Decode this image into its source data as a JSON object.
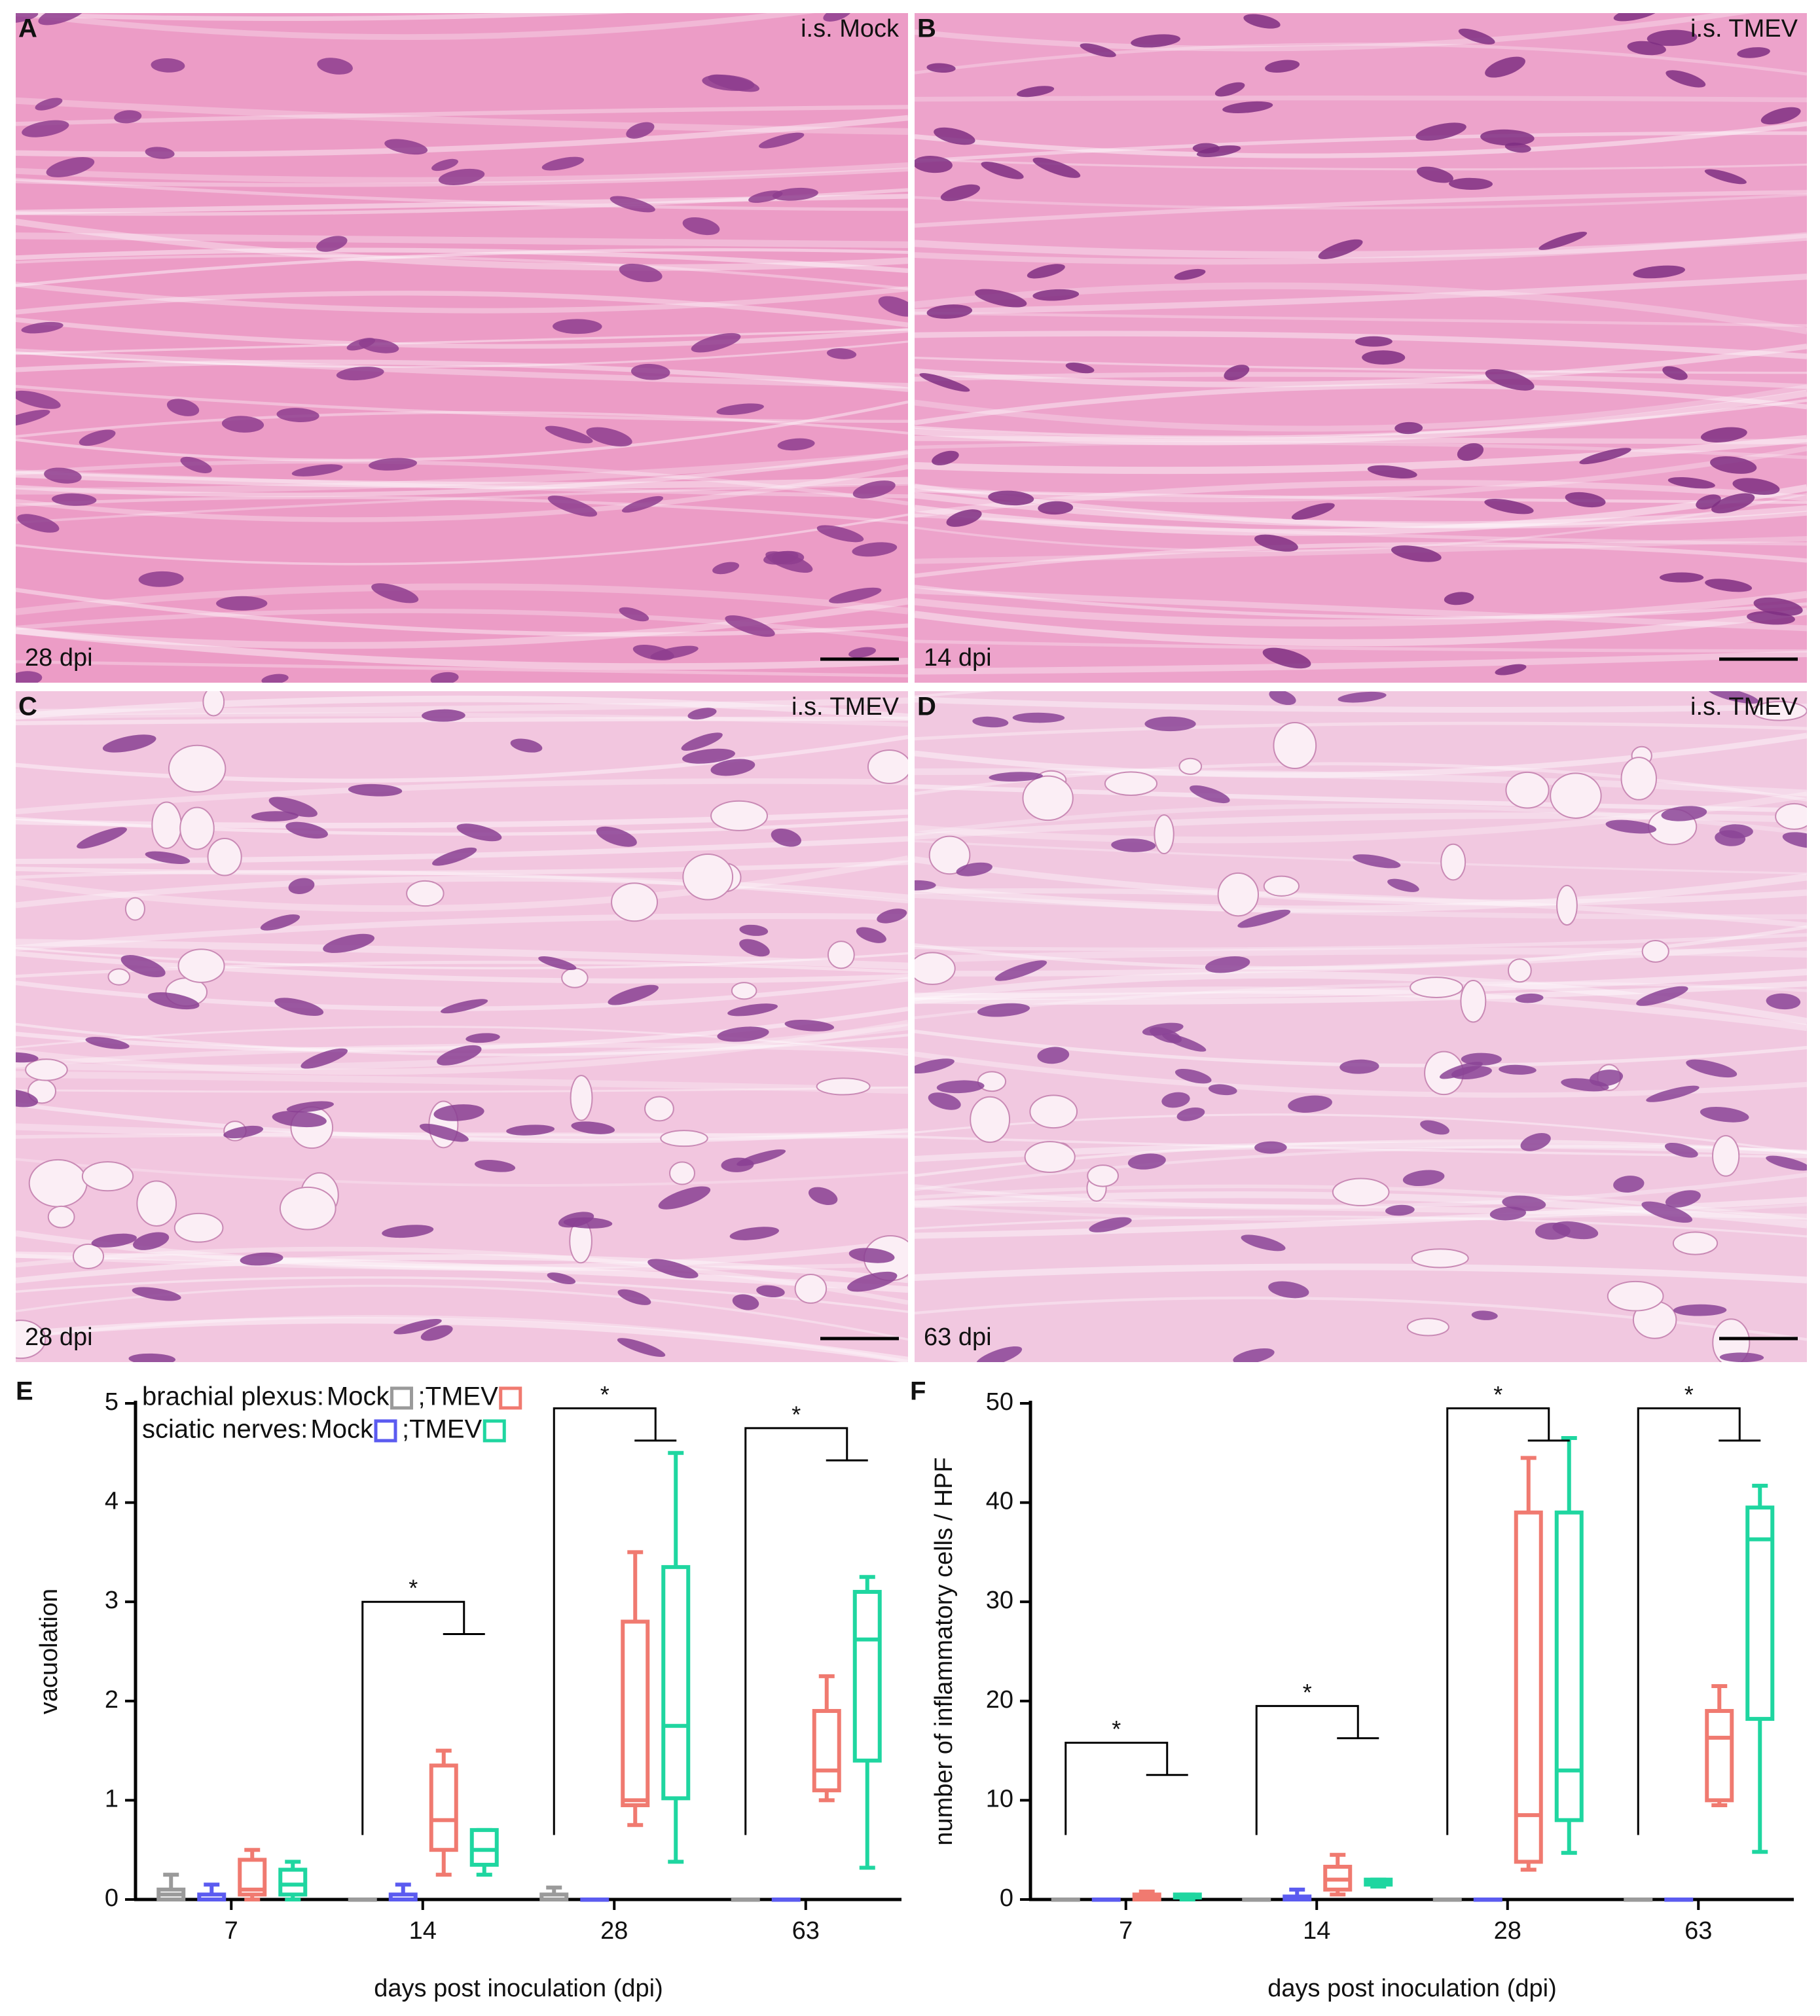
{
  "panels": [
    {
      "letter": "A",
      "label": "i.s. Mock",
      "time": "28 dpi"
    },
    {
      "letter": "B",
      "label": "i.s. TMEV",
      "time": "14 dpi"
    },
    {
      "letter": "C",
      "label": "i.s. TMEV",
      "time": "28 dpi"
    },
    {
      "letter": "D",
      "label": "i.s. TMEV",
      "time": "63 dpi"
    }
  ],
  "chart_data": [
    {
      "type": "box",
      "letter": "E",
      "ylabel": "vacuolation",
      "xlabel": "days post inoculation (dpi)",
      "categories": [
        "7",
        "14",
        "28",
        "63"
      ],
      "ylim": [
        0,
        5
      ],
      "yticks": [
        0,
        1,
        2,
        3,
        4,
        5
      ],
      "legend_rows": [
        "brachial plexus:",
        "sciatic nerves:"
      ],
      "legend_separator": ";",
      "series": [
        {
          "name": "Mock",
          "color": "#9a9a9a",
          "min": [
            0,
            0,
            0,
            0
          ],
          "q1": [
            0,
            0,
            0,
            0
          ],
          "median": [
            0.05,
            0,
            0,
            0
          ],
          "q3": [
            0.1,
            0,
            0.05,
            0
          ],
          "max": [
            0.25,
            0,
            0.12,
            0
          ]
        },
        {
          "name": "Mock",
          "color": "#5b5bf0",
          "min": [
            0,
            0,
            0,
            0
          ],
          "q1": [
            0,
            0,
            0,
            0
          ],
          "median": [
            0,
            0,
            0,
            0
          ],
          "q3": [
            0.05,
            0.05,
            0,
            0
          ],
          "max": [
            0.15,
            0.15,
            0,
            0
          ]
        },
        {
          "name": "TMEV",
          "color": "#f07a70",
          "min": [
            0,
            0.25,
            0.75,
            1.0
          ],
          "q1": [
            0.05,
            0.5,
            0.95,
            1.1
          ],
          "median": [
            0.1,
            0.8,
            1.0,
            1.3
          ],
          "q3": [
            0.4,
            1.35,
            2.8,
            1.9
          ],
          "max": [
            0.5,
            1.5,
            3.5,
            2.25
          ]
        },
        {
          "name": "TMEV",
          "color": "#1fd6a0",
          "min": [
            0,
            0.25,
            0.38,
            0.32
          ],
          "q1": [
            0.05,
            0.35,
            1.02,
            1.4
          ],
          "median": [
            0.15,
            0.5,
            1.75,
            2.62
          ],
          "q3": [
            0.3,
            0.7,
            3.35,
            3.1
          ],
          "max": [
            0.38,
            0.7,
            4.5,
            3.25
          ]
        }
      ],
      "annotations": [
        {
          "text": "*",
          "category": "14"
        },
        {
          "text": "*",
          "category": "28"
        },
        {
          "text": "*",
          "category": "63"
        }
      ]
    },
    {
      "type": "box",
      "letter": "F",
      "ylabel": "number of inflammatory cells / HPF",
      "xlabel": "days post inoculation (dpi)",
      "categories": [
        "7",
        "14",
        "28",
        "63"
      ],
      "ylim": [
        0,
        50
      ],
      "yticks": [
        0,
        10,
        20,
        30,
        40,
        50
      ],
      "series": [
        {
          "color": "#9a9a9a",
          "min": [
            0,
            0,
            0,
            0
          ],
          "q1": [
            0,
            0,
            0,
            0
          ],
          "median": [
            0,
            0,
            0,
            0
          ],
          "q3": [
            0,
            0,
            0,
            0
          ],
          "max": [
            0,
            0,
            0,
            0
          ]
        },
        {
          "color": "#5b5bf0",
          "min": [
            0,
            0,
            0,
            0
          ],
          "q1": [
            0,
            0,
            0,
            0
          ],
          "median": [
            0,
            0,
            0,
            0
          ],
          "q3": [
            0,
            0.3,
            0,
            0
          ],
          "max": [
            0,
            1,
            0,
            0
          ]
        },
        {
          "color": "#f07a70",
          "min": [
            0,
            0.5,
            3,
            9.5
          ],
          "q1": [
            0,
            1,
            3.8,
            10
          ],
          "median": [
            0.3,
            2,
            8.5,
            16.3
          ],
          "q3": [
            0.5,
            3.3,
            39,
            19
          ],
          "max": [
            0.8,
            4.5,
            44.5,
            21.5
          ]
        },
        {
          "color": "#1fd6a0",
          "min": [
            0,
            1.3,
            4.7,
            4.8
          ],
          "q1": [
            0.2,
            1.5,
            8,
            18.2
          ],
          "median": [
            0.3,
            1.7,
            13,
            36.3
          ],
          "q3": [
            0.5,
            2,
            39,
            39.5
          ],
          "max": [
            0.5,
            2,
            46.5,
            41.7
          ]
        }
      ],
      "annotations": [
        {
          "text": "*",
          "category": "7"
        },
        {
          "text": "*",
          "category": "14"
        },
        {
          "text": "*",
          "category": "28"
        },
        {
          "text": "*",
          "category": "63"
        }
      ]
    }
  ]
}
